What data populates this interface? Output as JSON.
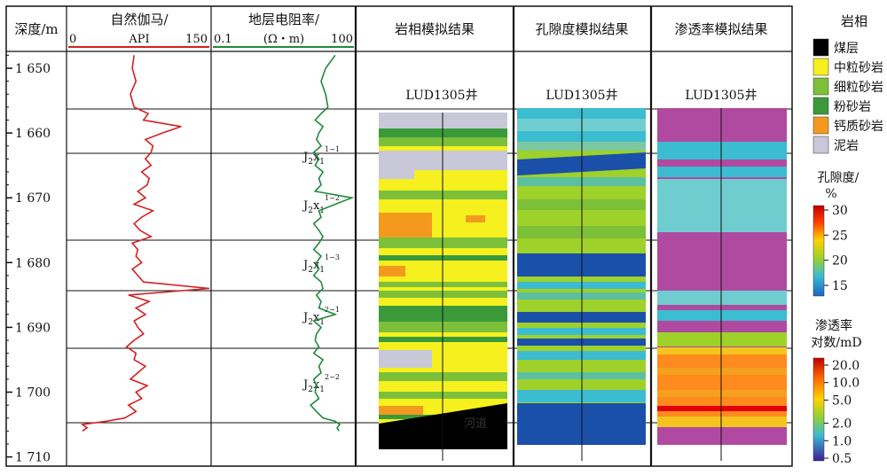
{
  "depth_track": {
    "header": "深度/m",
    "ticks": [
      "1 650",
      "1 660",
      "1 670",
      "1 680",
      "1 690",
      "1 700",
      "1 710"
    ]
  },
  "gr_track": {
    "title": "自然伽马/",
    "unit": "API",
    "min": "0",
    "max": "150",
    "color": "#d42020"
  },
  "res_track": {
    "title": "地层电阻率/",
    "unit": "(Ω・m)",
    "min": "0.1",
    "max": "100",
    "color": "#1f8a3a"
  },
  "layers": [
    "J2x1 1-1",
    "J2x1 1-2",
    "J2x1 1-3",
    "J2x1 2-1",
    "J2x1 2-2"
  ],
  "panels": [
    {
      "title": "岩相模拟结果",
      "well": "LUD1305井",
      "annotation": "河道"
    },
    {
      "title": "孔隙度模拟结果",
      "well": "LUD1305井"
    },
    {
      "title": "渗透率模拟结果",
      "well": "LUD1305井"
    }
  ],
  "legend": {
    "facies_title": "岩相",
    "facies": [
      {
        "name": "煤层",
        "color": "#000000"
      },
      {
        "name": "中粒砂岩",
        "color": "#f5f01e"
      },
      {
        "name": "细粒砂岩",
        "color": "#7cc03a"
      },
      {
        "name": "粉砂岩",
        "color": "#3a9a3a"
      },
      {
        "name": "钙质砂岩",
        "color": "#f39a1e"
      },
      {
        "name": "泥岩",
        "color": "#c8c8d8"
      }
    ],
    "porosity_title": "孔隙度/",
    "porosity_unit": "%",
    "porosity_ticks": [
      "30",
      "25",
      "20",
      "15"
    ],
    "perm_title": "渗透率",
    "perm_unit": "对数/mD",
    "perm_ticks": [
      "20.0",
      "10.0",
      "5.0",
      "2.0",
      "1.0",
      "0.5"
    ]
  },
  "chart_data": {
    "type": "line",
    "ylabel": "深度/m",
    "ylim": [
      1647,
      1711
    ],
    "depth": [
      1648,
      1650,
      1652,
      1654,
      1656,
      1657,
      1658,
      1659,
      1660,
      1661,
      1662,
      1663,
      1664,
      1665,
      1666,
      1667,
      1668,
      1669,
      1670,
      1671,
      1672,
      1673,
      1674,
      1675,
      1676,
      1677,
      1678,
      1679,
      1680,
      1681,
      1682,
      1683,
      1684,
      1685,
      1686,
      1687,
      1688,
      1689,
      1690,
      1691,
      1692,
      1693,
      1694,
      1695,
      1696,
      1697,
      1698,
      1699,
      1700,
      1701,
      1702,
      1703,
      1704,
      1704.5,
      1705,
      1705.5,
      1706
    ],
    "series": [
      {
        "name": "自然伽马/API",
        "xlim": [
          0,
          150
        ],
        "values": [
          70,
          68,
          72,
          66,
          70,
          85,
          80,
          120,
          100,
          82,
          90,
          88,
          82,
          88,
          78,
          86,
          84,
          74,
          82,
          70,
          90,
          78,
          70,
          76,
          88,
          68,
          74,
          72,
          78,
          68,
          74,
          80,
          150,
          64,
          86,
          72,
          82,
          70,
          74,
          80,
          70,
          62,
          72,
          70,
          82,
          74,
          66,
          84,
          72,
          78,
          64,
          72,
          60,
          40,
          15,
          20,
          15
        ]
      },
      {
        "name": "地层电阻率/(Ω・m)",
        "xlim": [
          0.1,
          100
        ],
        "values": [
          40,
          25,
          20,
          25,
          28,
          20,
          15,
          22,
          18,
          16,
          20,
          14,
          18,
          15,
          22,
          18,
          20,
          15,
          90,
          40,
          18,
          20,
          14,
          18,
          22,
          18,
          14,
          20,
          16,
          18,
          14,
          20,
          22,
          16,
          20,
          18,
          40,
          14,
          20,
          16,
          15,
          18,
          14,
          22,
          18,
          20,
          14,
          16,
          15,
          18,
          12,
          16,
          22,
          40,
          50,
          44,
          48
        ]
      }
    ]
  }
}
